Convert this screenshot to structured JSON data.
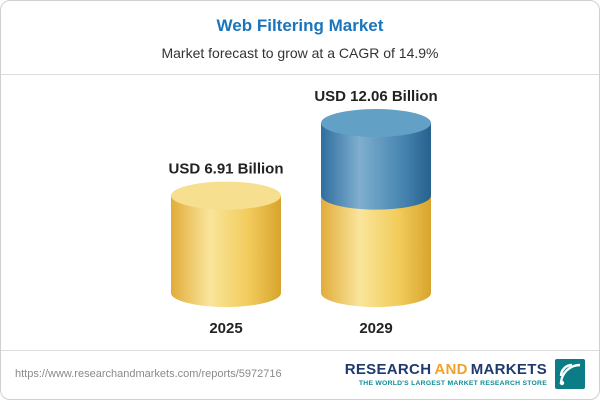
{
  "header": {
    "title": "Web Filtering Market",
    "subtitle": "Market forecast to grow at a CAGR of 14.9%"
  },
  "chart_data": {
    "type": "bar",
    "style": "3d-cylinder",
    "title": "Web Filtering Market",
    "subtitle": "Market forecast to grow at a CAGR of 14.9%",
    "cagr_pct": 14.9,
    "unit": "USD Billion",
    "categories": [
      "2025",
      "2029"
    ],
    "values": [
      6.91,
      12.06
    ],
    "value_labels": [
      "USD 6.91 Billion",
      "USD 12.06 Billion"
    ],
    "axes": "none",
    "legend": "none",
    "ylim": [
      0,
      12.06
    ],
    "bars": [
      {
        "category": "2025",
        "label": "USD 6.91 Billion",
        "segments": [
          {
            "value": 6.91,
            "color": "gold"
          }
        ]
      },
      {
        "category": "2029",
        "label": "USD 12.06 Billion",
        "segments": [
          {
            "value": 6.91,
            "color": "gold"
          },
          {
            "value": 5.15,
            "color": "blue"
          }
        ]
      }
    ]
  },
  "palette": {
    "gold": {
      "body": [
        "#E2AC3A",
        "#F9E59B",
        "#F2CC5C",
        "#D8A42E"
      ],
      "top": "#F6DF8F"
    },
    "blue": {
      "body": [
        "#2E6E9E",
        "#7FAECF",
        "#4C8AB4",
        "#27618E"
      ],
      "top": "#63A0C6"
    }
  },
  "colors": {
    "title_blue": "#1B75BC",
    "logo_navy": "#1E3A6E",
    "logo_gold": "#F0A22E",
    "logo_teal": "#0E8B93"
  },
  "footer": {
    "url": "https://www.researchandmarkets.com/reports/5972716",
    "logo_parts": [
      "RESEARCH",
      "AND",
      "MARKETS"
    ],
    "logo_tagline": "THE WORLD'S LARGEST MARKET RESEARCH STORE"
  }
}
